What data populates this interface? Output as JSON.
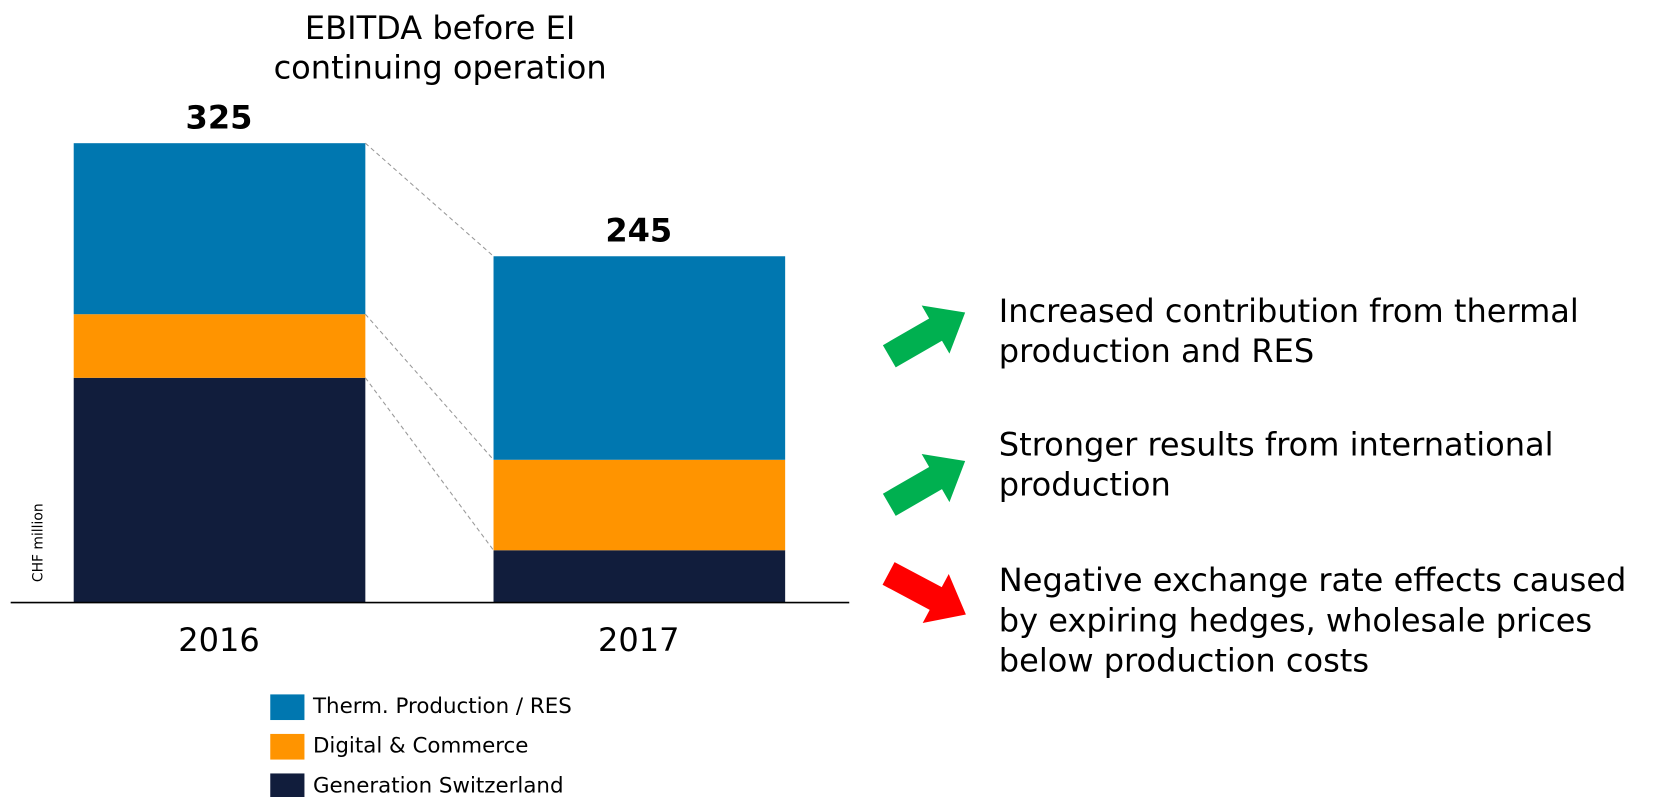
{
  "chart_data": {
    "type": "stacked-bar",
    "title": [
      "EBITDA before EI",
      "continuing operation"
    ],
    "y_label": "CHF million",
    "categories": [
      "2016",
      "2017"
    ],
    "series": [
      {
        "name": "Generation Switzerland",
        "color": "#111d3c",
        "values": [
          159,
          37
        ]
      },
      {
        "name": "Digital & Commerce",
        "color": "#ff9400",
        "values": [
          45,
          64
        ]
      },
      {
        "name": "Therm. Production / RES",
        "color": "#0077b0",
        "values": [
          121,
          144
        ]
      }
    ],
    "totals": [
      325,
      245
    ],
    "ylim": [
      0,
      325
    ]
  },
  "bullets": [
    [
      "Increased contribution from thermal",
      "production and RES"
    ],
    [
      "Stronger results from international",
      "production"
    ],
    [
      "Negative exchange rate effects caused",
      "by expiring hedges, wholesale prices",
      "below production costs"
    ]
  ]
}
